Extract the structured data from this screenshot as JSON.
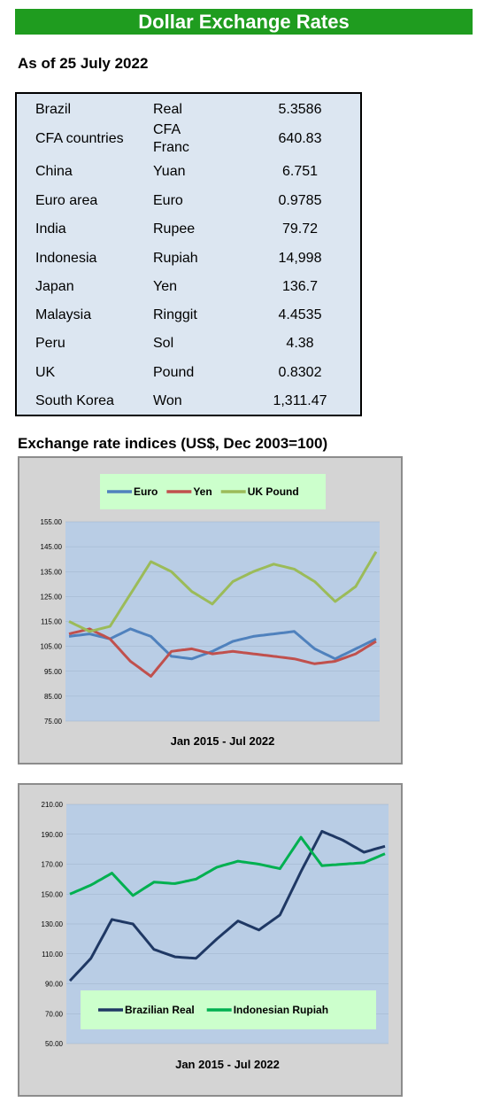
{
  "header": {
    "title": "Dollar Exchange Rates",
    "as_of": "As of 25 July 2022"
  },
  "rates": [
    {
      "country": "Brazil",
      "currency": "Real",
      "rate": "5.3586"
    },
    {
      "country": "CFA countries",
      "currency": "CFA Franc",
      "rate": "640.83"
    },
    {
      "country": "China",
      "currency": "Yuan",
      "rate": "6.751"
    },
    {
      "country": "Euro area",
      "currency": "Euro",
      "rate": "0.9785"
    },
    {
      "country": "India",
      "currency": "Rupee",
      "rate": "79.72"
    },
    {
      "country": "Indonesia",
      "currency": "Rupiah",
      "rate": "14,998"
    },
    {
      "country": "Japan",
      "currency": "Yen",
      "rate": "136.7"
    },
    {
      "country": "Malaysia",
      "currency": "Ringgit",
      "rate": "4.4535"
    },
    {
      "country": "Peru",
      "currency": "Sol",
      "rate": "4.38"
    },
    {
      "country": "UK",
      "currency": "Pound",
      "rate": "0.8302"
    },
    {
      "country": "South Korea",
      "currency": "Won",
      "rate": "1,311.47"
    }
  ],
  "indices_heading": "Exchange rate indices (US$, Dec 2003=100)",
  "colors": {
    "title_green": "#1f9c1f",
    "plot_bg": "#b9cde5",
    "legend_bg": "#ccffcc",
    "frame_bg": "#d4d4d4"
  },
  "chart_data": [
    {
      "type": "line",
      "xlabel": "Jan 2015 - Jul 2022",
      "ylim": [
        75,
        155
      ],
      "yticks": [
        "75.00",
        "85.00",
        "95.00",
        "105.00",
        "115.00",
        "125.00",
        "135.00",
        "145.00",
        "155.00"
      ],
      "x": [
        "2015-01",
        "2015-07",
        "2016-01",
        "2016-07",
        "2017-01",
        "2017-07",
        "2018-01",
        "2018-07",
        "2019-01",
        "2019-07",
        "2020-01",
        "2020-07",
        "2021-01",
        "2021-07",
        "2022-01",
        "2022-07"
      ],
      "series": [
        {
          "name": "Euro",
          "color": "#4f81bd",
          "values": [
            109,
            110,
            108,
            112,
            109,
            101,
            100,
            103,
            107,
            109,
            110,
            111,
            104,
            100,
            104,
            108
          ]
        },
        {
          "name": "Yen",
          "color": "#c0504d",
          "values": [
            110,
            112,
            108,
            99,
            93,
            103,
            104,
            102,
            103,
            102,
            101,
            100,
            98,
            99,
            102,
            107
          ]
        },
        {
          "name": "UK Pound",
          "color": "#9bbb59",
          "values": [
            115,
            111,
            113,
            126,
            139,
            135,
            127,
            122,
            131,
            135,
            138,
            136,
            131,
            123,
            129,
            143
          ]
        }
      ]
    },
    {
      "type": "line",
      "xlabel": "Jan 2015 - Jul 2022",
      "ylim": [
        50,
        210
      ],
      "yticks": [
        "50.00",
        "70.00",
        "90.00",
        "110.00",
        "130.00",
        "150.00",
        "170.00",
        "190.00",
        "210.00"
      ],
      "x": [
        "2015-01",
        "2015-07",
        "2016-01",
        "2016-07",
        "2017-01",
        "2017-07",
        "2018-01",
        "2018-07",
        "2019-01",
        "2019-07",
        "2020-01",
        "2020-07",
        "2021-01",
        "2021-07",
        "2022-01",
        "2022-07"
      ],
      "series": [
        {
          "name": "Brazilian Real",
          "color": "#1f3864",
          "values": [
            92,
            107,
            133,
            130,
            113,
            108,
            107,
            120,
            132,
            126,
            136,
            165,
            192,
            186,
            178,
            182
          ]
        },
        {
          "name": "Indonesian Rupiah",
          "color": "#00b050",
          "values": [
            150,
            156,
            164,
            149,
            158,
            157,
            160,
            168,
            172,
            170,
            167,
            188,
            169,
            170,
            171,
            177
          ]
        }
      ]
    }
  ]
}
